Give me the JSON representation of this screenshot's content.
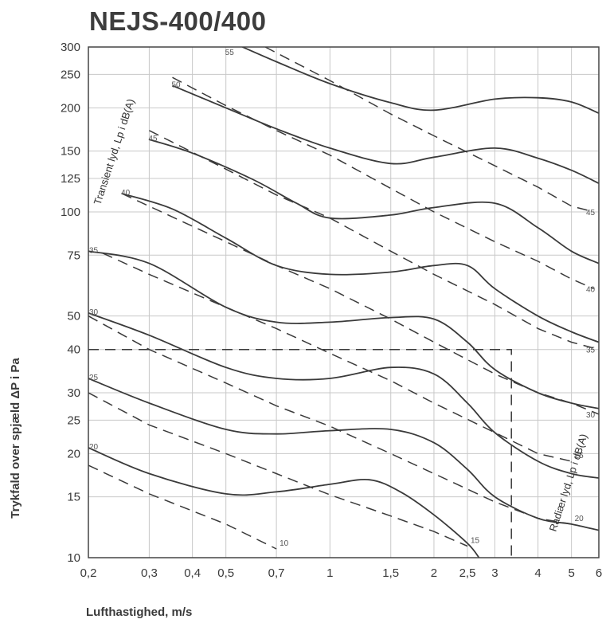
{
  "chart_data": {
    "type": "line",
    "title": "NEJS-400/400",
    "xlabel": "Lufthastighed, m/s",
    "ylabel": "Trykfald over spjæld ΔP i Pa",
    "x_scale": "log",
    "y_scale": "log",
    "xlim": [
      0.2,
      6
    ],
    "ylim": [
      10,
      300
    ],
    "grid": true,
    "x_ticks": [
      0.2,
      0.3,
      0.4,
      0.5,
      0.7,
      1,
      1.5,
      2,
      2.5,
      3,
      4,
      5,
      6
    ],
    "x_tick_labels": [
      "0,2",
      "0,3",
      "0,4",
      "0,5",
      "0,7",
      "1",
      "1,5",
      "2",
      "2,5",
      "3",
      "4",
      "5",
      "6"
    ],
    "y_ticks": [
      10,
      15,
      20,
      25,
      30,
      40,
      50,
      75,
      100,
      125,
      150,
      200,
      250,
      300
    ],
    "y_tick_labels": [
      "10",
      "15",
      "20",
      "25",
      "30",
      "40",
      "50",
      "75",
      "100",
      "125",
      "150",
      "200",
      "250",
      "300"
    ],
    "annotations": {
      "transient_label": "Transient lyd, Lp i dB(A)",
      "radiated_label": "Radiær lyd, Lp i dB(A)"
    },
    "series": [
      {
        "label": "20",
        "style": "solid",
        "points": [
          [
            0.2,
            20.8
          ],
          [
            0.3,
            17.5
          ],
          [
            0.5,
            15.3
          ],
          [
            0.7,
            15.5
          ],
          [
            1.0,
            16.3
          ],
          [
            1.3,
            16.8
          ],
          [
            1.6,
            15.5
          ],
          [
            2.0,
            13.3
          ],
          [
            2.5,
            11.0
          ],
          [
            2.7,
            10.0
          ]
        ]
      },
      {
        "label": "25",
        "style": "solid",
        "points": [
          [
            0.2,
            33.0
          ],
          [
            0.3,
            28.0
          ],
          [
            0.5,
            23.5
          ],
          [
            0.7,
            22.8
          ],
          [
            1.0,
            23.3
          ],
          [
            1.5,
            23.5
          ],
          [
            2.0,
            21.5
          ],
          [
            2.5,
            18.0
          ],
          [
            3.0,
            15.0
          ],
          [
            4.0,
            13.0
          ],
          [
            5.0,
            12.5
          ],
          [
            6.0,
            12.0
          ]
        ]
      },
      {
        "label": "30",
        "style": "solid",
        "points": [
          [
            0.2,
            51.0
          ],
          [
            0.3,
            44.0
          ],
          [
            0.5,
            35.5
          ],
          [
            0.7,
            33.0
          ],
          [
            1.0,
            33.0
          ],
          [
            1.5,
            35.5
          ],
          [
            2.0,
            34.0
          ],
          [
            2.5,
            28.0
          ],
          [
            3.0,
            23.0
          ],
          [
            4.0,
            19.0
          ],
          [
            5.0,
            17.5
          ],
          [
            6.0,
            17.0
          ]
        ]
      },
      {
        "label": "35",
        "style": "solid",
        "points": [
          [
            0.2,
            77.0
          ],
          [
            0.3,
            71.0
          ],
          [
            0.5,
            53.0
          ],
          [
            0.7,
            48.0
          ],
          [
            1.0,
            48.0
          ],
          [
            1.5,
            49.5
          ],
          [
            2.0,
            49.0
          ],
          [
            2.5,
            42.0
          ],
          [
            3.0,
            35.0
          ],
          [
            4.0,
            30.0
          ],
          [
            5.0,
            28.0
          ],
          [
            6.0,
            27.0
          ]
        ]
      },
      {
        "label": "40",
        "style": "solid",
        "points": [
          [
            0.25,
            113.0
          ],
          [
            0.35,
            102.0
          ],
          [
            0.5,
            84.0
          ],
          [
            0.7,
            70.0
          ],
          [
            1.0,
            66.0
          ],
          [
            1.5,
            67.0
          ],
          [
            2.0,
            70.0
          ],
          [
            2.5,
            70.0
          ],
          [
            3.0,
            60.0
          ],
          [
            4.0,
            50.0
          ],
          [
            5.0,
            45.0
          ],
          [
            6.0,
            42.0
          ]
        ]
      },
      {
        "label": "45",
        "style": "solid",
        "points": [
          [
            0.3,
            162.0
          ],
          [
            0.4,
            148.0
          ],
          [
            0.6,
            124.0
          ],
          [
            0.8,
            106.0
          ],
          [
            1.0,
            96.0
          ],
          [
            1.5,
            98.0
          ],
          [
            2.0,
            103.0
          ],
          [
            3.0,
            106.0
          ],
          [
            4.0,
            90.0
          ],
          [
            5.0,
            77.0
          ],
          [
            6.0,
            71.0
          ]
        ]
      },
      {
        "label": "50",
        "style": "solid",
        "points": [
          [
            0.35,
            232.0
          ],
          [
            0.5,
            200.0
          ],
          [
            0.7,
            174.0
          ],
          [
            1.0,
            153.0
          ],
          [
            1.5,
            138.0
          ],
          [
            2.0,
            144.0
          ],
          [
            3.0,
            153.0
          ],
          [
            4.0,
            143.0
          ],
          [
            5.0,
            132.0
          ],
          [
            6.0,
            121.0
          ]
        ]
      },
      {
        "label": "55",
        "style": "solid",
        "points": [
          [
            0.5,
            315.0
          ],
          [
            0.7,
            272.0
          ],
          [
            1.0,
            235.0
          ],
          [
            1.5,
            207.0
          ],
          [
            2.0,
            197.0
          ],
          [
            3.0,
            212.0
          ],
          [
            4.0,
            214.0
          ],
          [
            5.0,
            208.0
          ],
          [
            6.0,
            193.0
          ]
        ]
      },
      {
        "label": "10",
        "style": "dashed",
        "points": [
          [
            0.2,
            18.5
          ],
          [
            0.3,
            15.3
          ],
          [
            0.5,
            12.5
          ],
          [
            0.7,
            10.6
          ]
        ]
      },
      {
        "label": "15",
        "style": "dashed",
        "points": [
          [
            0.2,
            30.0
          ],
          [
            0.3,
            24.2
          ],
          [
            0.5,
            20.0
          ],
          [
            0.7,
            17.5
          ],
          [
            1.0,
            15.2
          ],
          [
            1.5,
            13.2
          ],
          [
            2.0,
            11.9
          ],
          [
            2.5,
            10.8
          ]
        ]
      },
      {
        "label": "20",
        "style": "dashed",
        "points": [
          [
            0.2,
            50.0
          ],
          [
            0.3,
            40.0
          ],
          [
            0.5,
            32.0
          ],
          [
            0.7,
            27.5
          ],
          [
            1.0,
            24.0
          ],
          [
            1.5,
            20.0
          ],
          [
            2.0,
            17.5
          ],
          [
            3.0,
            14.5
          ],
          [
            4.0,
            13.0
          ],
          [
            5.0,
            12.5
          ]
        ]
      },
      {
        "label": "25",
        "style": "dashed",
        "points": [
          [
            0.22,
            76.0
          ],
          [
            0.3,
            66.0
          ],
          [
            0.5,
            53.0
          ],
          [
            0.7,
            46.0
          ],
          [
            1.0,
            39.0
          ],
          [
            1.5,
            32.5
          ],
          [
            2.0,
            28.0
          ],
          [
            3.0,
            23.0
          ],
          [
            4.0,
            20.0
          ],
          [
            5.0,
            19.0
          ]
        ]
      },
      {
        "label": "30",
        "style": "dashed",
        "points": [
          [
            0.25,
            113.0
          ],
          [
            0.5,
            82.0
          ],
          [
            0.7,
            70.0
          ],
          [
            1.0,
            60.0
          ],
          [
            1.5,
            49.0
          ],
          [
            2.0,
            42.0
          ],
          [
            3.0,
            34.0
          ],
          [
            4.0,
            30.0
          ],
          [
            5.0,
            28.0
          ],
          [
            6.0,
            26.0
          ]
        ]
      },
      {
        "label": "35",
        "style": "dashed",
        "points": [
          [
            0.3,
            172.0
          ],
          [
            0.5,
            133.0
          ],
          [
            0.7,
            112.0
          ],
          [
            1.0,
            96.0
          ],
          [
            1.5,
            77.0
          ],
          [
            2.0,
            66.0
          ],
          [
            3.0,
            54.0
          ],
          [
            4.0,
            46.0
          ],
          [
            5.0,
            42.0
          ],
          [
            6.0,
            40.0
          ]
        ]
      },
      {
        "label": "40",
        "style": "dashed",
        "points": [
          [
            0.35,
            245.0
          ],
          [
            0.5,
            203.0
          ],
          [
            0.7,
            172.0
          ],
          [
            1.0,
            146.0
          ],
          [
            1.5,
            117.0
          ],
          [
            2.0,
            100.0
          ],
          [
            3.0,
            82.0
          ],
          [
            4.0,
            72.0
          ],
          [
            5.0,
            64.0
          ],
          [
            5.8,
            60.0
          ]
        ]
      },
      {
        "label": "45",
        "style": "dashed",
        "points": [
          [
            0.65,
            300.0
          ],
          [
            1.0,
            240.0
          ],
          [
            1.5,
            192.0
          ],
          [
            2.0,
            166.0
          ],
          [
            3.0,
            136.0
          ],
          [
            4.0,
            118.0
          ],
          [
            5.0,
            104.0
          ],
          [
            5.8,
            100.0
          ]
        ]
      },
      {
        "label": "",
        "style": "dashed-reference",
        "points": [
          [
            0.2,
            40.0
          ],
          [
            3.35,
            40.0
          ],
          [
            3.35,
            10.0
          ]
        ]
      }
    ]
  }
}
